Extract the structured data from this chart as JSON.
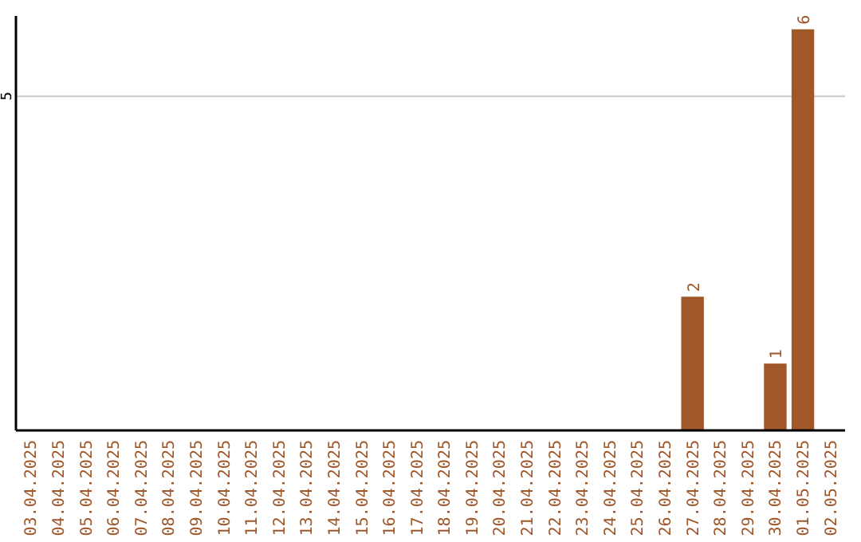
{
  "chart_data": {
    "type": "bar",
    "categories": [
      "03.04.2025",
      "04.04.2025",
      "05.04.2025",
      "06.04.2025",
      "07.04.2025",
      "08.04.2025",
      "09.04.2025",
      "10.04.2025",
      "11.04.2025",
      "12.04.2025",
      "13.04.2025",
      "14.04.2025",
      "15.04.2025",
      "16.04.2025",
      "17.04.2025",
      "18.04.2025",
      "19.04.2025",
      "20.04.2025",
      "21.04.2025",
      "22.04.2025",
      "23.04.2025",
      "24.04.2025",
      "25.04.2025",
      "26.04.2025",
      "27.04.2025",
      "28.04.2025",
      "29.04.2025",
      "30.04.2025",
      "01.05.2025",
      "02.05.2025"
    ],
    "values": [
      null,
      null,
      null,
      null,
      null,
      null,
      null,
      null,
      null,
      null,
      null,
      null,
      null,
      null,
      null,
      null,
      null,
      null,
      null,
      null,
      null,
      null,
      null,
      null,
      2,
      null,
      null,
      1,
      6,
      null
    ],
    "data_labels": true,
    "color": "#a0572a",
    "ylim": [
      0,
      6.2
    ],
    "ref_lines": [
      {
        "axis": "y",
        "value": 5,
        "label": "5",
        "color": "#c8c8c8"
      }
    ]
  }
}
